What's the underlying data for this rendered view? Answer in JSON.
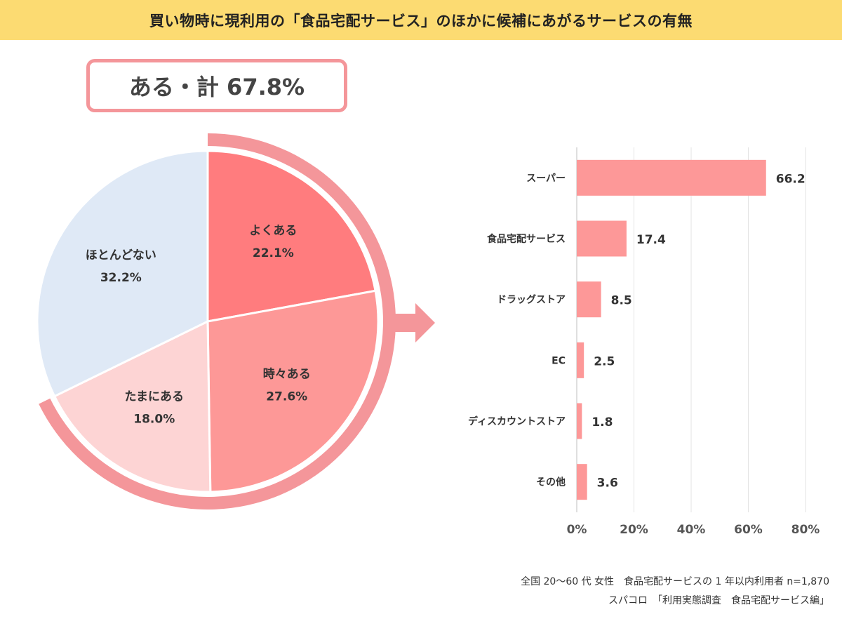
{
  "title": "買い物時に現利用の「食品宅配サービス」のほかに候補にあがるサービスの有無",
  "total_label": "ある・計 67.8%",
  "colors": {
    "title_bg": "#fcdb72",
    "accent": "#f4969a",
    "often": "#ff7c7e",
    "sometimes": "#fd9897",
    "occasionally": "#fdd4d4",
    "rarely": "#dfe9f6",
    "bar": "#fd9898"
  },
  "chart_data": [
    {
      "type": "pie",
      "slices": [
        {
          "label": "よくある",
          "value": 22.1,
          "display": "22.1%"
        },
        {
          "label": "時々ある",
          "value": 27.6,
          "display": "27.6%"
        },
        {
          "label": "たまにある",
          "value": 18.0,
          "display": "18.0%"
        },
        {
          "label": "ほとんどない",
          "value": 32.2,
          "display": "32.2%"
        }
      ]
    },
    {
      "type": "bar",
      "orientation": "horizontal",
      "categories": [
        "スーパー",
        "食品宅配サービス",
        "ドラッグストア",
        "EC",
        "ディスカウントストア",
        "その他"
      ],
      "values": [
        66.2,
        17.4,
        8.5,
        2.5,
        1.8,
        3.6
      ],
      "value_labels": [
        "66.2",
        "17.4",
        "8.5",
        "2.5",
        "1.8",
        "3.6"
      ],
      "xlim": [
        0,
        80
      ],
      "ticks": [
        0,
        20,
        40,
        60,
        80
      ],
      "tick_labels": [
        "0%",
        "20%",
        "40%",
        "60%",
        "80%"
      ],
      "grid": true
    }
  ],
  "notes": {
    "line1": "全国 20～60 代 女性　食品宅配サービスの 1 年以内利用者 n=1,870",
    "line2": "スパコロ　「利用実態調査　食品宅配サービス編」"
  }
}
